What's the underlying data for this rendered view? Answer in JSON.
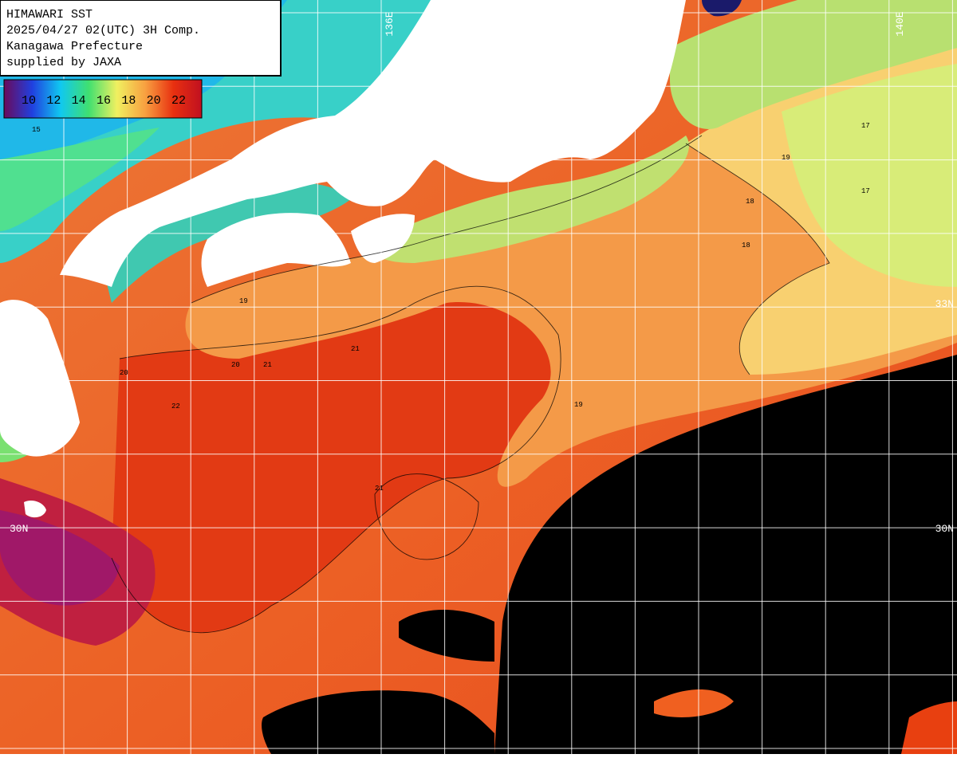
{
  "header": {
    "lines": [
      "HIMAWARI SST",
      "2025/04/27 02(UTC) 3H Comp.",
      "Kanagawa Prefecture",
      "supplied by JAXA"
    ]
  },
  "legend": {
    "ticks": [
      10,
      12,
      14,
      16,
      18,
      20,
      22
    ],
    "colors": [
      "#6a0a5a",
      "#2040e0",
      "#10c8f0",
      "#40e070",
      "#f0f060",
      "#f8a040",
      "#e83010",
      "#c01020"
    ]
  },
  "grid_labels": {
    "top": [
      "136E",
      "140E"
    ],
    "left": [
      "30N"
    ],
    "right": [
      "33N",
      "30N"
    ]
  },
  "contour_labels": [
    15,
    17,
    17,
    18,
    18,
    19,
    19,
    19,
    20,
    20,
    21,
    21,
    21,
    22
  ]
}
